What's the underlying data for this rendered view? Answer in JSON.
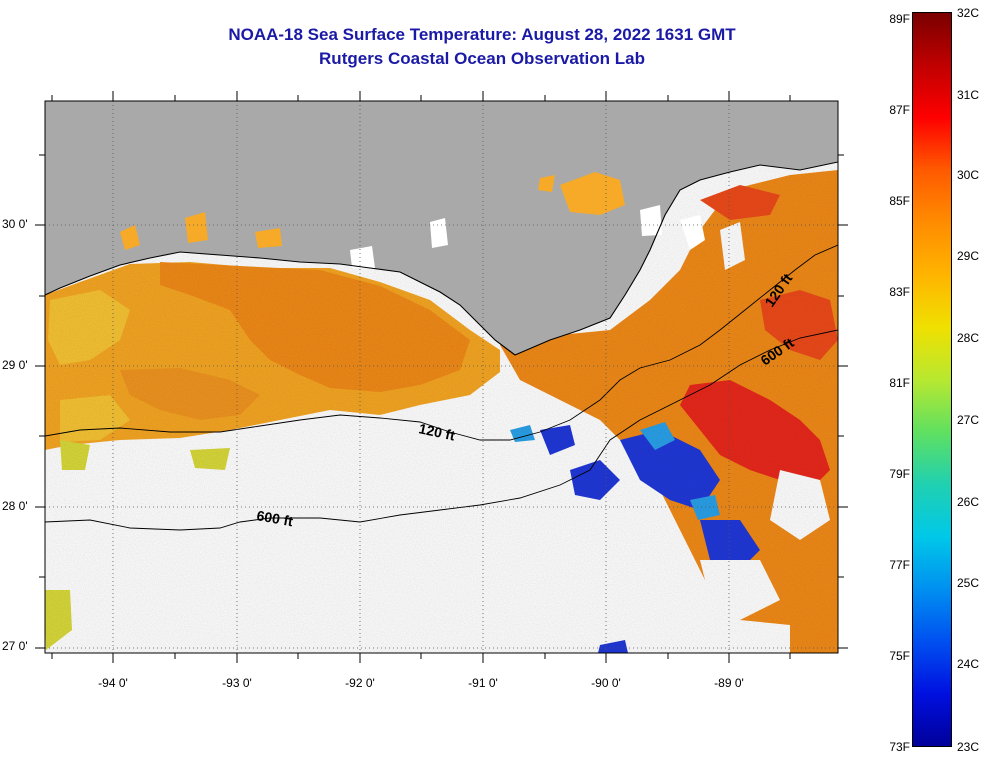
{
  "title_line1": "NOAA-18 Sea Surface Temperature:  August 28, 2022 1631 GMT",
  "title_line2": "Rutgers Coastal Ocean Observation Lab",
  "latitude_labels": [
    "30 0'",
    "29 0'",
    "28 0'",
    "27 0'"
  ],
  "longitude_labels": [
    "-94 0'",
    "-93 0'",
    "-92 0'",
    "-91 0'",
    "-90 0'",
    "-89 0'"
  ],
  "contour_labels": [
    "120 ft",
    "600 ft",
    "120 ft",
    "600 ft"
  ],
  "colorbar": {
    "fahrenheit_labels": [
      "89F",
      "87F",
      "85F",
      "83F",
      "81F",
      "79F",
      "77F",
      "75F",
      "73F"
    ],
    "celsius_labels": [
      "32C",
      "31C",
      "30C",
      "29C",
      "28C",
      "27C",
      "26C",
      "25C",
      "24C",
      "23C"
    ],
    "range_celsius": [
      23,
      32
    ]
  },
  "colors": {
    "land": "#a9a9a9",
    "title": "#1a1aa6",
    "cloud": "#ffffff",
    "warm_water": "#f08a18",
    "hot_water": "#e8281c",
    "mild_water": "#f7b02a",
    "cool_water": "#2038d8"
  }
}
